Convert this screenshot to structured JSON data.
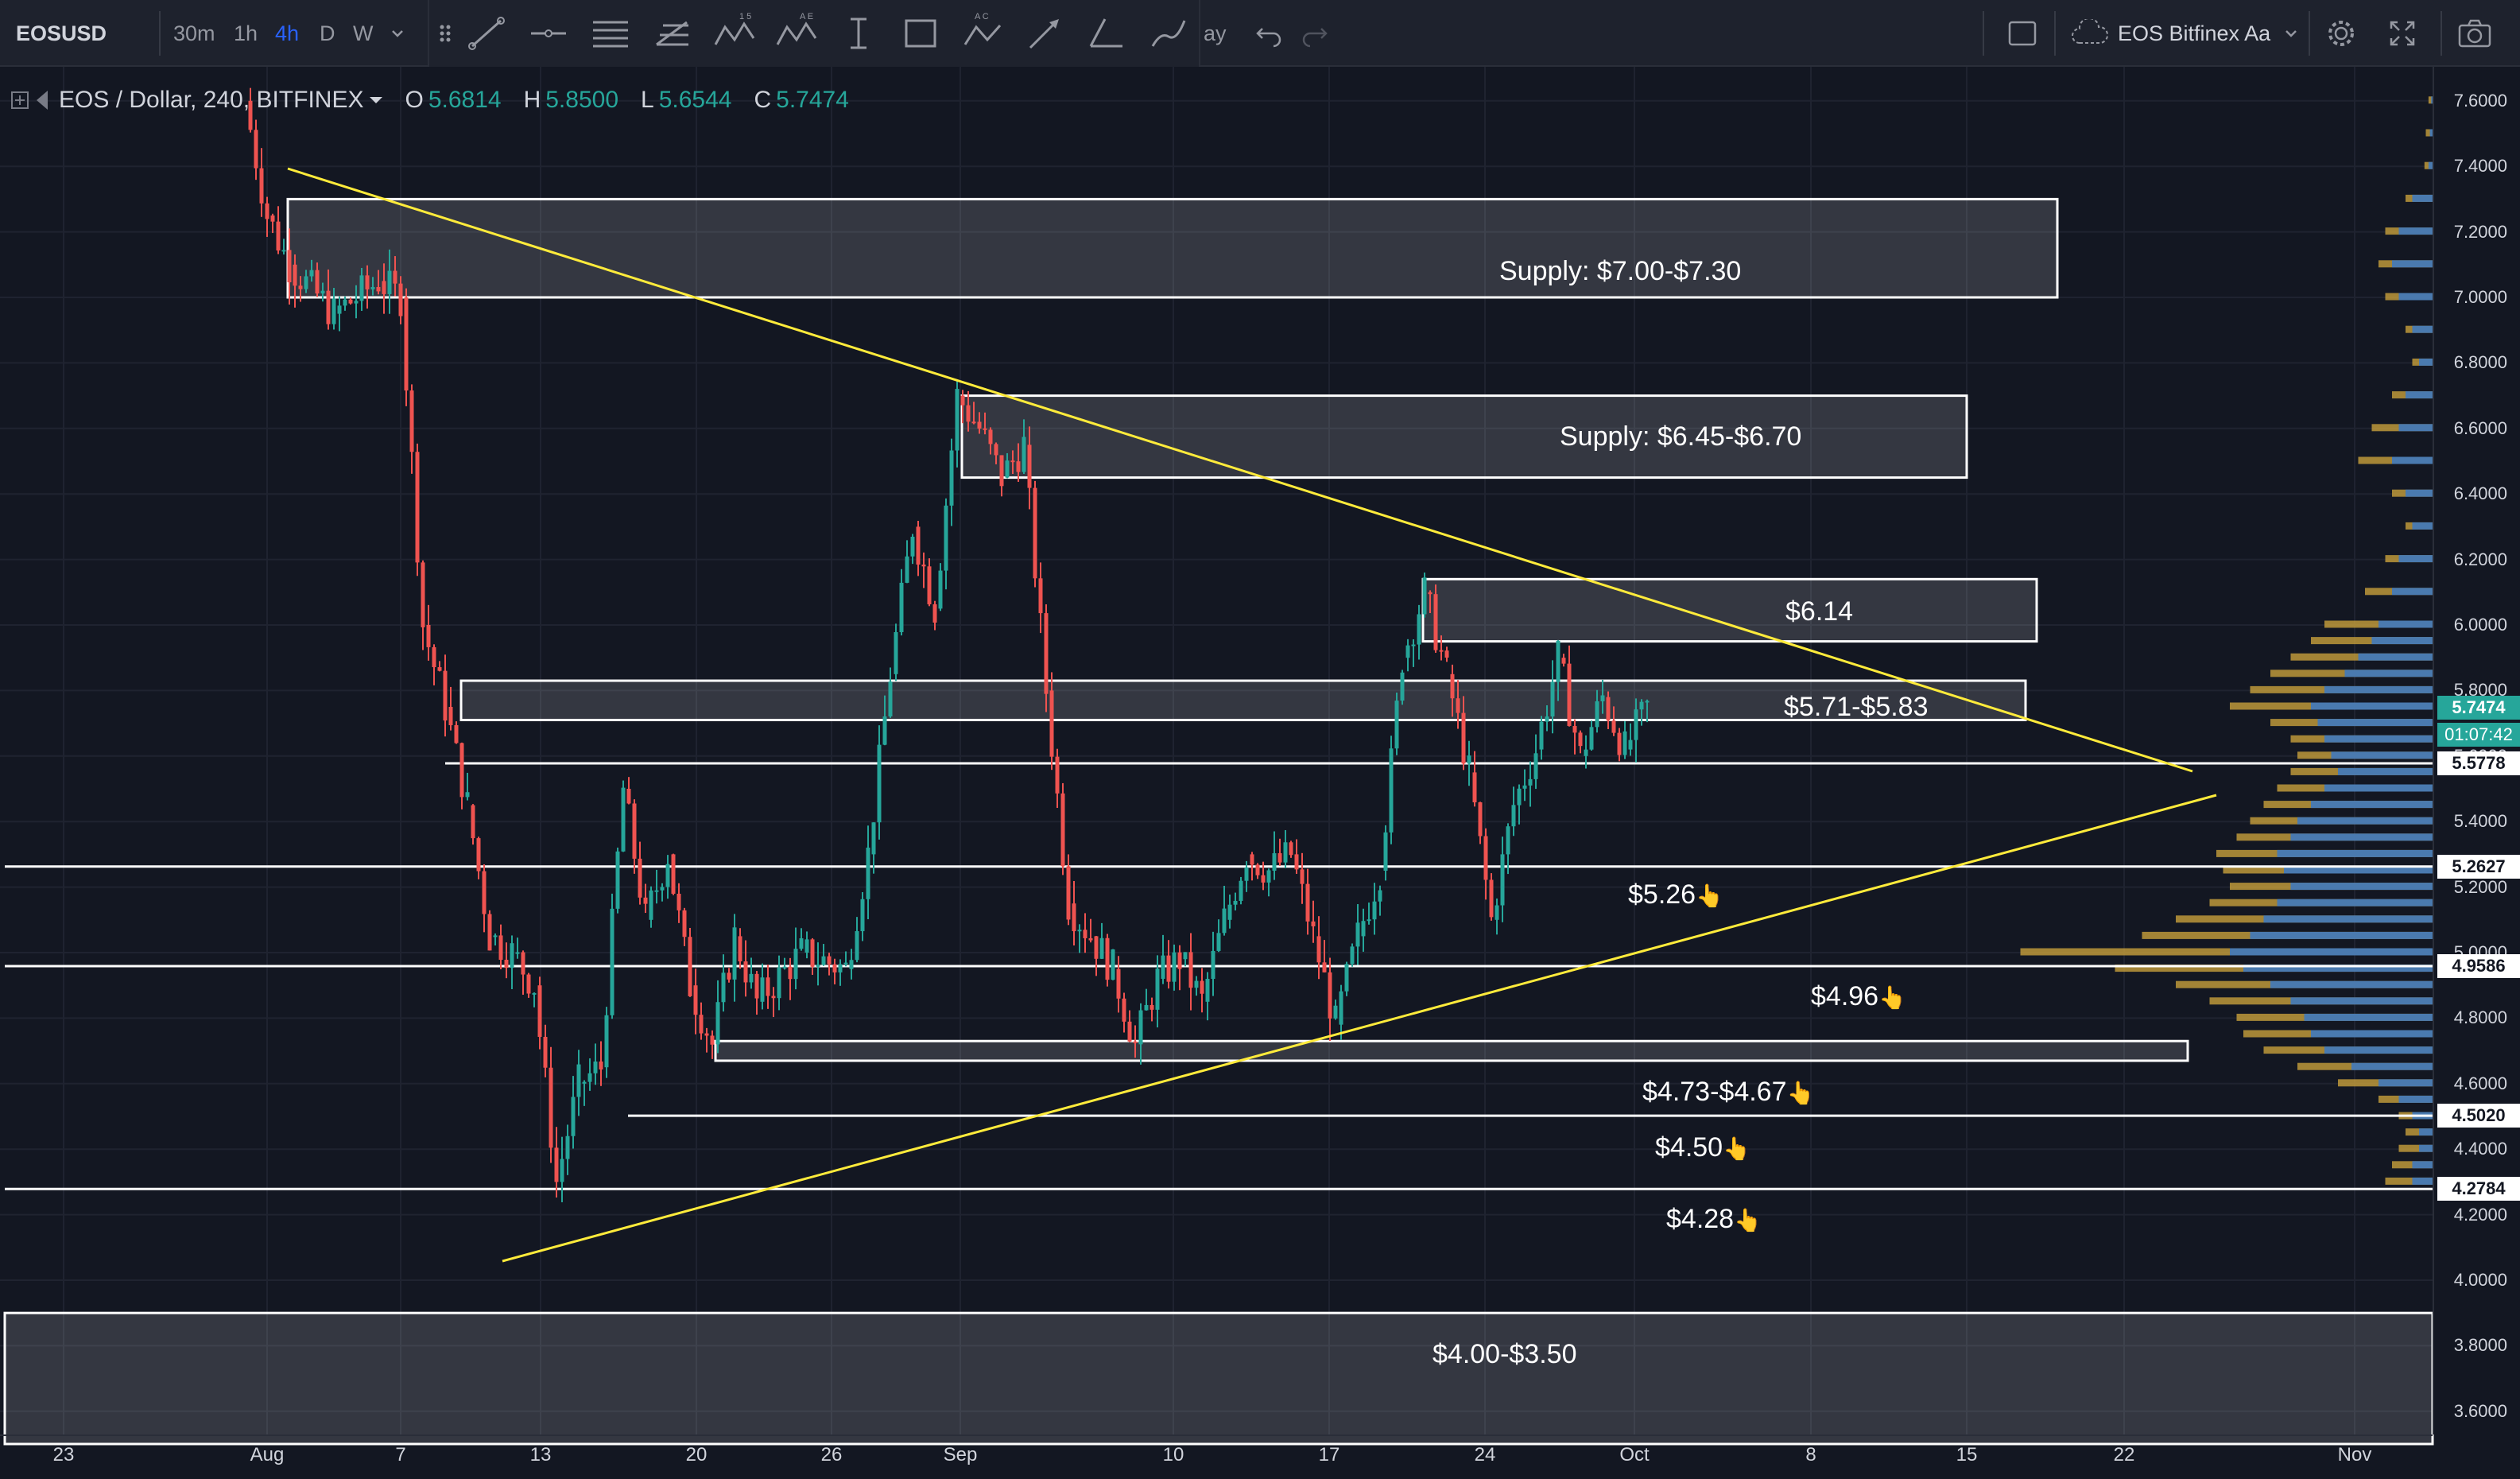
{
  "toolbar": {
    "symbol": "EOSUSD",
    "intervals": [
      "30m",
      "1h",
      "4h",
      "D",
      "W"
    ],
    "active_interval": "4h",
    "truncated_label": "ay",
    "layout_name": "EOS Bitfinex Aa",
    "icons": [
      "chevron-down-icon",
      "drag-handle-icon",
      "trend-line-icon",
      "horizontal-ray-icon",
      "parallel-channel-icon",
      "fib-retracement-icon",
      "xabcd-pattern-icon",
      "elliott-wave-icon",
      "price-range-icon",
      "rectangle-icon",
      "abcd-pattern-icon",
      "arrow-icon",
      "angle-icon",
      "brush-icon",
      "undo-icon",
      "redo-icon",
      "square-icon",
      "cloud-icon",
      "gear-icon",
      "fullscreen-icon",
      "camera-icon"
    ]
  },
  "legend": {
    "title": "EOS / Dollar, 240, BITFINEX",
    "o_label": "O",
    "o_value": "5.6814",
    "h_label": "H",
    "h_value": "5.8500",
    "l_label": "L",
    "l_value": "5.6544",
    "c_label": "C",
    "c_value": "5.7474"
  },
  "price_scale": {
    "ticks": [
      "7.6000",
      "7.4000",
      "7.2000",
      "7.0000",
      "6.8000",
      "6.6000",
      "6.4000",
      "6.2000",
      "6.0000",
      "5.8000",
      "5.6000",
      "5.4000",
      "5.2000",
      "5.0000",
      "4.8000",
      "4.6000",
      "4.4000",
      "4.2000",
      "4.0000",
      "3.8000",
      "3.6000"
    ],
    "current_price": "5.7474",
    "countdown": "01:07:42",
    "level_labels": [
      "5.5778",
      "5.2627",
      "4.9586",
      "4.5020",
      "4.2784"
    ]
  },
  "time_scale": {
    "ticks": [
      "23",
      "Aug",
      "7",
      "13",
      "20",
      "26",
      "Sep",
      "10",
      "17",
      "24",
      "Oct",
      "8",
      "15",
      "22",
      "Nov"
    ]
  },
  "annotations": {
    "supply_1": "Supply: $7.00-$7.30",
    "supply_2": "Supply: $6.45-$6.70",
    "zone_614": "$6.14",
    "zone_571": "$5.71-$5.83",
    "level_526": "$5.26",
    "level_496": "$4.96",
    "zone_473": "$4.73-$4.67",
    "level_450": "$4.50",
    "level_428": "$4.28",
    "zone_400": "$4.00-$3.50"
  },
  "colors": {
    "background": "#131722",
    "up_candle": "#26a69a",
    "down_candle": "#ef5350",
    "trendline": "#ffeb3b",
    "volume_up": "#c8a03c",
    "volume_down": "#3b78c4",
    "accent": "#2962ff"
  },
  "chart_data": {
    "type": "candlestick",
    "symbol": "EOS / Dollar, 240, BITFINEX",
    "x_ticks": [
      "23",
      "Aug",
      "7",
      "13",
      "20",
      "26",
      "Sep",
      "10",
      "17",
      "24",
      "Oct",
      "8",
      "15",
      "22",
      "Nov"
    ],
    "y_ticks": [
      7.6,
      7.4,
      7.2,
      7.0,
      6.8,
      6.6,
      6.4,
      6.2,
      6.0,
      5.8,
      5.6,
      5.4,
      5.2,
      5.0,
      4.8,
      4.6,
      4.4,
      4.2,
      4.0,
      3.8,
      3.6
    ],
    "ylim": [
      3.6,
      7.7
    ],
    "last_price": 5.7474,
    "path": [
      {
        "date": "2018-07-31",
        "price": 7.6
      },
      {
        "date": "2018-08-01",
        "price": 7.25
      },
      {
        "date": "2018-08-02",
        "price": 7.1
      },
      {
        "date": "2018-08-04",
        "price": 6.95
      },
      {
        "date": "2018-08-06",
        "price": 7.05
      },
      {
        "date": "2018-08-07",
        "price": 7.0
      },
      {
        "date": "2018-08-08",
        "price": 6.0
      },
      {
        "date": "2018-08-09",
        "price": 5.75
      },
      {
        "date": "2018-08-10",
        "price": 5.45
      },
      {
        "date": "2018-08-11",
        "price": 5.05
      },
      {
        "date": "2018-08-12",
        "price": 5.0
      },
      {
        "date": "2018-08-13",
        "price": 4.9
      },
      {
        "date": "2018-08-14",
        "price": 4.3
      },
      {
        "date": "2018-08-15",
        "price": 4.6
      },
      {
        "date": "2018-08-16",
        "price": 4.65
      },
      {
        "date": "2018-08-17",
        "price": 5.5
      },
      {
        "date": "2018-08-18",
        "price": 5.1
      },
      {
        "date": "2018-08-19",
        "price": 5.3
      },
      {
        "date": "2018-08-20",
        "price": 4.9
      },
      {
        "date": "2018-08-21",
        "price": 4.72
      },
      {
        "date": "2018-08-22",
        "price": 5.05
      },
      {
        "date": "2018-08-23",
        "price": 4.85
      },
      {
        "date": "2018-08-25",
        "price": 5.0
      },
      {
        "date": "2018-08-27",
        "price": 4.95
      },
      {
        "date": "2018-08-28",
        "price": 5.3
      },
      {
        "date": "2018-08-29",
        "price": 5.85
      },
      {
        "date": "2018-08-30",
        "price": 6.3
      },
      {
        "date": "2018-08-31",
        "price": 6.05
      },
      {
        "date": "2018-09-01",
        "price": 6.7
      },
      {
        "date": "2018-09-02",
        "price": 6.6
      },
      {
        "date": "2018-09-03",
        "price": 6.45
      },
      {
        "date": "2018-09-04",
        "price": 6.55
      },
      {
        "date": "2018-09-05",
        "price": 5.8
      },
      {
        "date": "2018-09-06",
        "price": 5.15
      },
      {
        "date": "2018-09-07",
        "price": 5.05
      },
      {
        "date": "2018-09-08",
        "price": 4.95
      },
      {
        "date": "2018-09-09",
        "price": 4.72
      },
      {
        "date": "2018-09-10",
        "price": 4.92
      },
      {
        "date": "2018-09-11",
        "price": 4.98
      },
      {
        "date": "2018-09-12",
        "price": 4.85
      },
      {
        "date": "2018-09-13",
        "price": 5.1
      },
      {
        "date": "2018-09-14",
        "price": 5.3
      },
      {
        "date": "2018-09-15",
        "price": 5.25
      },
      {
        "date": "2018-09-16",
        "price": 5.3
      },
      {
        "date": "2018-09-17",
        "price": 5.05
      },
      {
        "date": "2018-09-18",
        "price": 4.78
      },
      {
        "date": "2018-09-19",
        "price": 5.05
      },
      {
        "date": "2018-09-20",
        "price": 5.25
      },
      {
        "date": "2018-09-21",
        "price": 5.9
      },
      {
        "date": "2018-09-22",
        "price": 6.1
      },
      {
        "date": "2018-09-23",
        "price": 5.85
      },
      {
        "date": "2018-09-24",
        "price": 5.55
      },
      {
        "date": "2018-09-25",
        "price": 5.1
      },
      {
        "date": "2018-09-26",
        "price": 5.45
      },
      {
        "date": "2018-09-27",
        "price": 5.62
      },
      {
        "date": "2018-09-28",
        "price": 5.9
      },
      {
        "date": "2018-09-29",
        "price": 5.6
      },
      {
        "date": "2018-09-30",
        "price": 5.78
      },
      {
        "date": "2018-10-01",
        "price": 5.62
      },
      {
        "date": "2018-10-02",
        "price": 5.7474
      }
    ]
  }
}
